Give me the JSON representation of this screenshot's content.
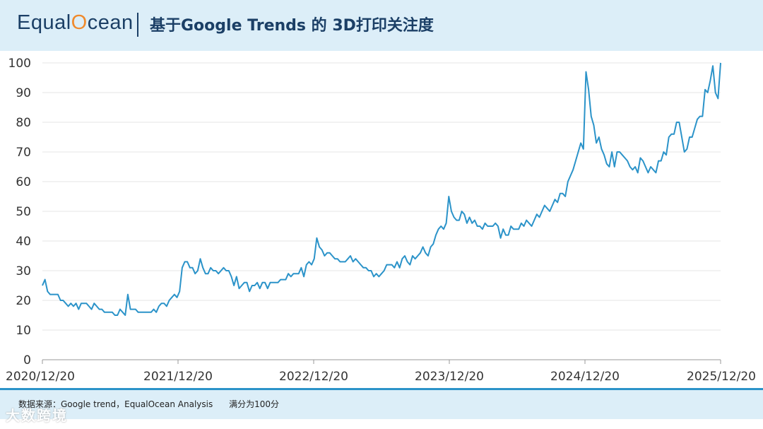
{
  "header": {
    "logo_prefix": "Equal",
    "logo_accent": "O",
    "logo_suffix": "cean",
    "title": "基于Google Trends 的 3D打印关注度"
  },
  "footer": {
    "source": "数据来源：Google trend，EqualOcean Analysis      满分为100分",
    "watermark": "大数跨境"
  },
  "colors": {
    "line": "#2b93c9",
    "header_bg": "#dceef8",
    "title": "#1b3f66",
    "accent": "#ef8a2d"
  },
  "chart_data": {
    "type": "line",
    "title": "基于Google Trends 的 3D打印关注度",
    "xlabel": "",
    "ylabel": "",
    "ylim": [
      0,
      100
    ],
    "y_ticks": [
      0,
      10,
      20,
      30,
      40,
      50,
      60,
      70,
      80,
      90,
      100
    ],
    "x_ticks": [
      "2020/12/20",
      "2021/12/20",
      "2022/12/20",
      "2023/12/20",
      "2024/12/20",
      "2025/12/20"
    ],
    "grid": true,
    "series": [
      {
        "values": [
          25,
          27,
          23,
          22,
          22,
          22,
          22,
          20,
          20,
          19,
          18,
          19,
          18,
          19,
          17,
          19,
          19,
          19,
          18,
          17,
          19,
          18,
          17,
          17,
          16,
          16,
          16,
          16,
          15,
          15,
          17,
          16,
          15,
          22,
          17,
          17,
          17,
          16,
          16,
          16,
          16,
          16,
          16,
          17,
          16,
          18,
          19,
          19,
          18,
          20,
          21,
          22,
          21,
          23,
          31,
          33,
          33,
          31,
          31,
          29,
          30,
          34,
          31,
          29,
          29,
          31,
          30,
          30,
          29,
          30,
          31,
          30,
          30,
          28,
          25,
          28,
          24,
          25,
          26,
          26,
          23,
          25,
          25,
          26,
          24,
          26,
          26,
          24,
          26,
          26,
          26,
          26,
          27,
          27,
          27,
          29,
          28,
          29,
          29,
          29,
          31,
          28,
          32,
          33,
          32,
          34,
          41,
          38,
          37,
          35,
          36,
          36,
          35,
          34,
          34,
          33,
          33,
          33,
          34,
          35,
          33,
          34,
          33,
          32,
          31,
          31,
          30,
          30,
          28,
          29,
          28,
          29,
          30,
          32,
          32,
          32,
          31,
          33,
          31,
          34,
          35,
          33,
          32,
          35,
          34,
          35,
          36,
          38,
          36,
          35,
          38,
          39,
          42,
          44,
          45,
          44,
          46,
          55,
          50,
          48,
          47,
          47,
          50,
          49,
          46,
          48,
          46,
          47,
          45,
          45,
          44,
          46,
          45,
          45,
          45,
          46,
          45,
          41,
          44,
          42,
          42,
          45,
          44,
          44,
          44,
          46,
          45,
          47,
          46,
          45,
          47,
          49,
          48,
          50,
          52,
          51,
          50,
          52,
          54,
          53,
          56,
          56,
          55,
          60,
          62,
          64,
          67,
          70,
          73,
          71,
          97,
          91,
          82,
          79,
          73,
          75,
          71,
          69,
          66,
          65,
          70,
          65,
          70,
          70,
          69,
          68,
          67,
          65,
          64,
          65,
          63,
          68,
          67,
          65,
          63,
          65,
          64,
          63,
          67,
          67,
          70,
          69,
          75,
          76,
          76,
          80,
          80,
          75,
          70,
          71,
          75,
          75,
          78,
          81,
          82,
          82,
          91,
          90,
          94,
          99,
          90,
          88,
          100
        ]
      }
    ]
  }
}
